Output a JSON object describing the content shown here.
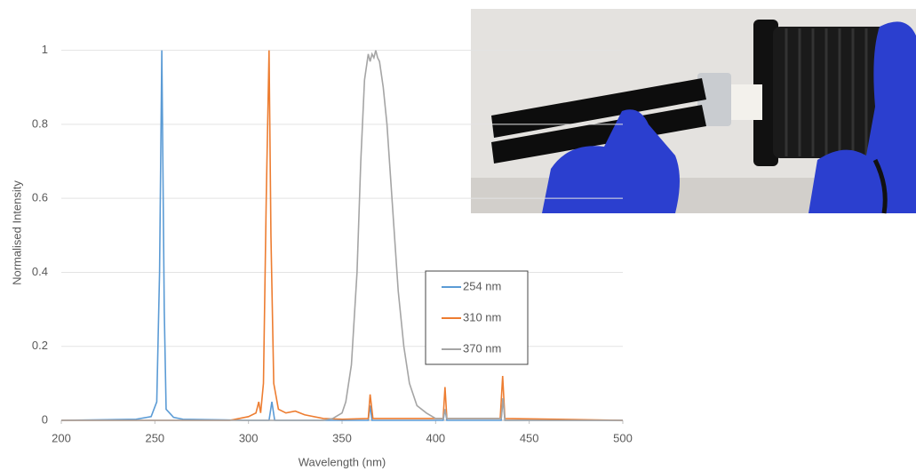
{
  "chart_data": {
    "type": "line",
    "x_label": "Wavelength (nm)",
    "y_label": "Normalised Intensity",
    "xlim": [
      200,
      500
    ],
    "xticks": [
      200,
      250,
      300,
      350,
      400,
      450,
      500
    ],
    "ylim": [
      0,
      1.1
    ],
    "yticks": [
      0,
      0.2,
      0.4,
      0.6,
      0.8,
      1
    ],
    "grid": true,
    "series": [
      {
        "name": "254 nm",
        "color": "#5b9bd5",
        "x": [
          200,
          240,
          248,
          251,
          252.5,
          253.7,
          255,
          256,
          260,
          265,
          300,
          311,
          312.5,
          314,
          364,
          365,
          366,
          404,
          405,
          406,
          435,
          436,
          437,
          500
        ],
        "values": [
          0,
          0.003,
          0.01,
          0.05,
          0.4,
          1,
          0.3,
          0.03,
          0.008,
          0.003,
          0,
          0,
          0.05,
          0,
          0,
          0.04,
          0,
          0,
          0.03,
          0,
          0,
          0.06,
          0,
          0
        ]
      },
      {
        "name": "310 nm",
        "color": "#ed7d31",
        "x": [
          200,
          290,
          295,
          300,
          304,
          305.5,
          306.5,
          308,
          309.5,
          311,
          312,
          313.5,
          316,
          320,
          325,
          330,
          340,
          350,
          364,
          365,
          366.5,
          404,
          405,
          406,
          434.5,
          435.8,
          437,
          500
        ],
        "values": [
          0,
          0,
          0.005,
          0.01,
          0.02,
          0.05,
          0.02,
          0.1,
          0.6,
          1,
          0.5,
          0.1,
          0.03,
          0.02,
          0.025,
          0.015,
          0.005,
          0.003,
          0.005,
          0.07,
          0.005,
          0.005,
          0.09,
          0.005,
          0.005,
          0.12,
          0.005,
          0
        ]
      },
      {
        "name": "370 nm",
        "color": "#a5a5a5",
        "x": [
          200,
          340,
          345,
          350,
          352,
          355,
          358,
          360,
          362,
          364,
          365,
          366,
          367,
          368,
          369,
          370,
          372,
          374,
          376,
          378,
          380,
          383,
          386,
          390,
          395,
          400,
          404,
          405,
          406,
          435,
          436,
          437,
          500
        ],
        "values": [
          0,
          0,
          0.005,
          0.02,
          0.05,
          0.15,
          0.4,
          0.7,
          0.92,
          0.99,
          0.97,
          0.99,
          0.98,
          1,
          0.98,
          0.97,
          0.9,
          0.8,
          0.65,
          0.5,
          0.35,
          0.2,
          0.1,
          0.04,
          0.02,
          0.005,
          0.005,
          0.03,
          0.005,
          0.005,
          0.06,
          0,
          0
        ]
      }
    ]
  }
}
